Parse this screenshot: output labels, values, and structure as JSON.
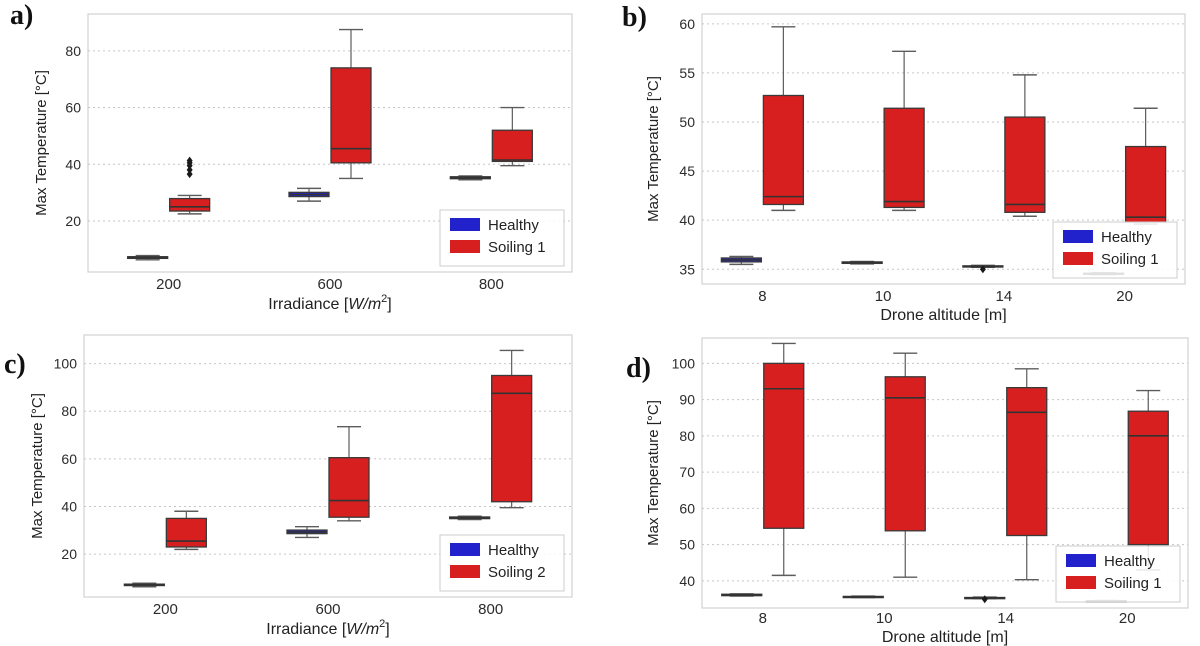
{
  "colors": {
    "healthy": "#2222cc",
    "soiling": "#d81f1f",
    "box_edge": "#3a3a3a",
    "median": "#333333",
    "whisker": "#5c5c5c",
    "flier": "#1a1a1a",
    "grid": "#c6c6c6",
    "frame": "#d2d2d2",
    "tick_text": "#2b2b2b",
    "label_text": "#222222",
    "legend_bg": "rgba(255,255,255,0.85)",
    "legend_border": "#cccccc"
  },
  "chart_data": [
    {
      "type": "box",
      "panel_label": "a)",
      "ylabel": "Max Temperature [°C]",
      "xlabel": "Irradiance [W/m²]",
      "xlabel_parts": {
        "pre": "Irradiance [",
        "math": "W/m",
        "sup": "2",
        "post": "]"
      },
      "categories": [
        "200",
        "600",
        "800"
      ],
      "ylim": [
        2,
        93
      ],
      "yticks": [
        20,
        40,
        60,
        80
      ],
      "grid": true,
      "legend_position": "lower right",
      "legend": [
        "Healthy",
        "Soiling 1"
      ],
      "series": [
        {
          "name": "Healthy",
          "color_key": "healthy",
          "boxes": [
            {
              "whislo": 6.3,
              "q1": 6.8,
              "med": 7.1,
              "q3": 7.4,
              "whishi": 7.8,
              "fliers": []
            },
            {
              "whislo": 27.0,
              "q1": 28.6,
              "med": 29.3,
              "q3": 30.1,
              "whishi": 31.5,
              "fliers": []
            },
            {
              "whislo": 34.5,
              "q1": 34.9,
              "med": 35.2,
              "q3": 35.6,
              "whishi": 35.9,
              "fliers": []
            }
          ]
        },
        {
          "name": "Soiling 1",
          "color_key": "soiling",
          "boxes": [
            {
              "whislo": 22.5,
              "q1": 23.5,
              "med": 25.0,
              "q3": 27.9,
              "whishi": 29.0,
              "fliers": [
                36.5,
                38.0,
                39.5,
                40.5,
                41.3
              ]
            },
            {
              "whislo": 35.0,
              "q1": 40.5,
              "med": 45.5,
              "q3": 74.0,
              "whishi": 87.5,
              "fliers": []
            },
            {
              "whislo": 39.5,
              "q1": 41.0,
              "med": 41.5,
              "q3": 52.0,
              "whishi": 60.0,
              "fliers": []
            }
          ]
        }
      ]
    },
    {
      "type": "box",
      "panel_label": "b)",
      "ylabel": "Max Temperature [°C]",
      "xlabel": "Drone altitude [m]",
      "xlabel_parts": {
        "pre": "Drone altitude [m]"
      },
      "categories": [
        "8",
        "10",
        "14",
        "20"
      ],
      "ylim": [
        33.5,
        61
      ],
      "yticks": [
        35,
        40,
        45,
        50,
        55,
        60
      ],
      "grid": true,
      "legend_position": "lower right",
      "legend": [
        "Healthy",
        "Soiling 1"
      ],
      "series": [
        {
          "name": "Healthy",
          "color_key": "healthy",
          "boxes": [
            {
              "whislo": 35.5,
              "q1": 35.75,
              "med": 35.95,
              "q3": 36.15,
              "whishi": 36.3,
              "fliers": []
            },
            {
              "whislo": 35.55,
              "q1": 35.6,
              "med": 35.7,
              "q3": 35.75,
              "whishi": 35.8,
              "fliers": []
            },
            {
              "whislo": 35.2,
              "q1": 35.25,
              "med": 35.3,
              "q3": 35.35,
              "whishi": 35.4,
              "fliers": [
                35.0
              ]
            },
            {
              "whislo": 34.45,
              "q1": 34.5,
              "med": 34.55,
              "q3": 34.6,
              "whishi": 34.65,
              "fliers": []
            }
          ]
        },
        {
          "name": "Soiling 1",
          "color_key": "soiling",
          "boxes": [
            {
              "whislo": 41.0,
              "q1": 41.6,
              "med": 42.4,
              "q3": 52.7,
              "whishi": 59.7,
              "fliers": []
            },
            {
              "whislo": 41.0,
              "q1": 41.3,
              "med": 41.9,
              "q3": 51.4,
              "whishi": 57.2,
              "fliers": []
            },
            {
              "whislo": 40.4,
              "q1": 40.8,
              "med": 41.6,
              "q3": 50.5,
              "whishi": 54.8,
              "fliers": []
            },
            {
              "whislo": 39.6,
              "q1": 39.8,
              "med": 40.3,
              "q3": 47.5,
              "whishi": 51.4,
              "fliers": []
            }
          ]
        }
      ]
    },
    {
      "type": "box",
      "panel_label": "c)",
      "ylabel": "Max Temperature [°C]",
      "xlabel": "Irradiance [W/m²]",
      "xlabel_parts": {
        "pre": "Irradiance [",
        "math": "W/m",
        "sup": "2",
        "post": "]"
      },
      "categories": [
        "200",
        "600",
        "800"
      ],
      "ylim": [
        2,
        112
      ],
      "yticks": [
        20,
        40,
        60,
        80,
        100
      ],
      "grid": true,
      "legend_position": "lower right",
      "legend": [
        "Healthy",
        "Soiling 2"
      ],
      "series": [
        {
          "name": "Healthy",
          "color_key": "healthy",
          "boxes": [
            {
              "whislo": 6.3,
              "q1": 6.8,
              "med": 7.1,
              "q3": 7.4,
              "whishi": 7.8,
              "fliers": []
            },
            {
              "whislo": 27.0,
              "q1": 28.6,
              "med": 29.3,
              "q3": 30.1,
              "whishi": 31.5,
              "fliers": []
            },
            {
              "whislo": 34.5,
              "q1": 34.9,
              "med": 35.2,
              "q3": 35.6,
              "whishi": 35.9,
              "fliers": []
            }
          ]
        },
        {
          "name": "Soiling 2",
          "color_key": "soiling",
          "boxes": [
            {
              "whislo": 22.0,
              "q1": 23.0,
              "med": 25.5,
              "q3": 35.0,
              "whishi": 38.0,
              "fliers": []
            },
            {
              "whislo": 34.0,
              "q1": 35.5,
              "med": 42.5,
              "q3": 60.5,
              "whishi": 73.5,
              "fliers": []
            },
            {
              "whislo": 39.5,
              "q1": 42.0,
              "med": 87.5,
              "q3": 95.0,
              "whishi": 105.5,
              "fliers": []
            }
          ]
        }
      ]
    },
    {
      "type": "box",
      "panel_label": "d)",
      "ylabel": "Max Temperature [°C]",
      "xlabel": "Drone altitude [m]",
      "xlabel_parts": {
        "pre": "Drone altitude [m]"
      },
      "categories": [
        "8",
        "10",
        "14",
        "20"
      ],
      "ylim": [
        32.5,
        107
      ],
      "yticks": [
        40,
        50,
        60,
        70,
        80,
        90,
        100
      ],
      "grid": true,
      "legend_position": "lower right",
      "legend": [
        "Healthy",
        "Soiling 1"
      ],
      "series": [
        {
          "name": "Healthy",
          "color_key": "healthy",
          "boxes": [
            {
              "whislo": 35.8,
              "q1": 35.9,
              "med": 36.1,
              "q3": 36.3,
              "whishi": 36.4,
              "fliers": []
            },
            {
              "whislo": 35.4,
              "q1": 35.5,
              "med": 35.6,
              "q3": 35.7,
              "whishi": 35.8,
              "fliers": []
            },
            {
              "whislo": 35.1,
              "q1": 35.2,
              "med": 35.3,
              "q3": 35.4,
              "whishi": 35.5,
              "fliers": [
                34.9
              ]
            },
            {
              "whislo": 34.2,
              "q1": 34.3,
              "med": 34.4,
              "q3": 34.5,
              "whishi": 34.6,
              "fliers": []
            }
          ]
        },
        {
          "name": "Soiling 1",
          "color_key": "soiling",
          "boxes": [
            {
              "whislo": 41.5,
              "q1": 54.5,
              "med": 93.0,
              "q3": 100.0,
              "whishi": 105.5,
              "fliers": []
            },
            {
              "whislo": 41.0,
              "q1": 53.8,
              "med": 90.5,
              "q3": 96.3,
              "whishi": 102.8,
              "fliers": []
            },
            {
              "whislo": 40.3,
              "q1": 52.5,
              "med": 86.5,
              "q3": 93.3,
              "whishi": 98.5,
              "fliers": []
            },
            {
              "whislo": 43.0,
              "q1": 50.0,
              "med": 80.0,
              "q3": 86.8,
              "whishi": 92.5,
              "fliers": []
            }
          ]
        }
      ]
    }
  ]
}
